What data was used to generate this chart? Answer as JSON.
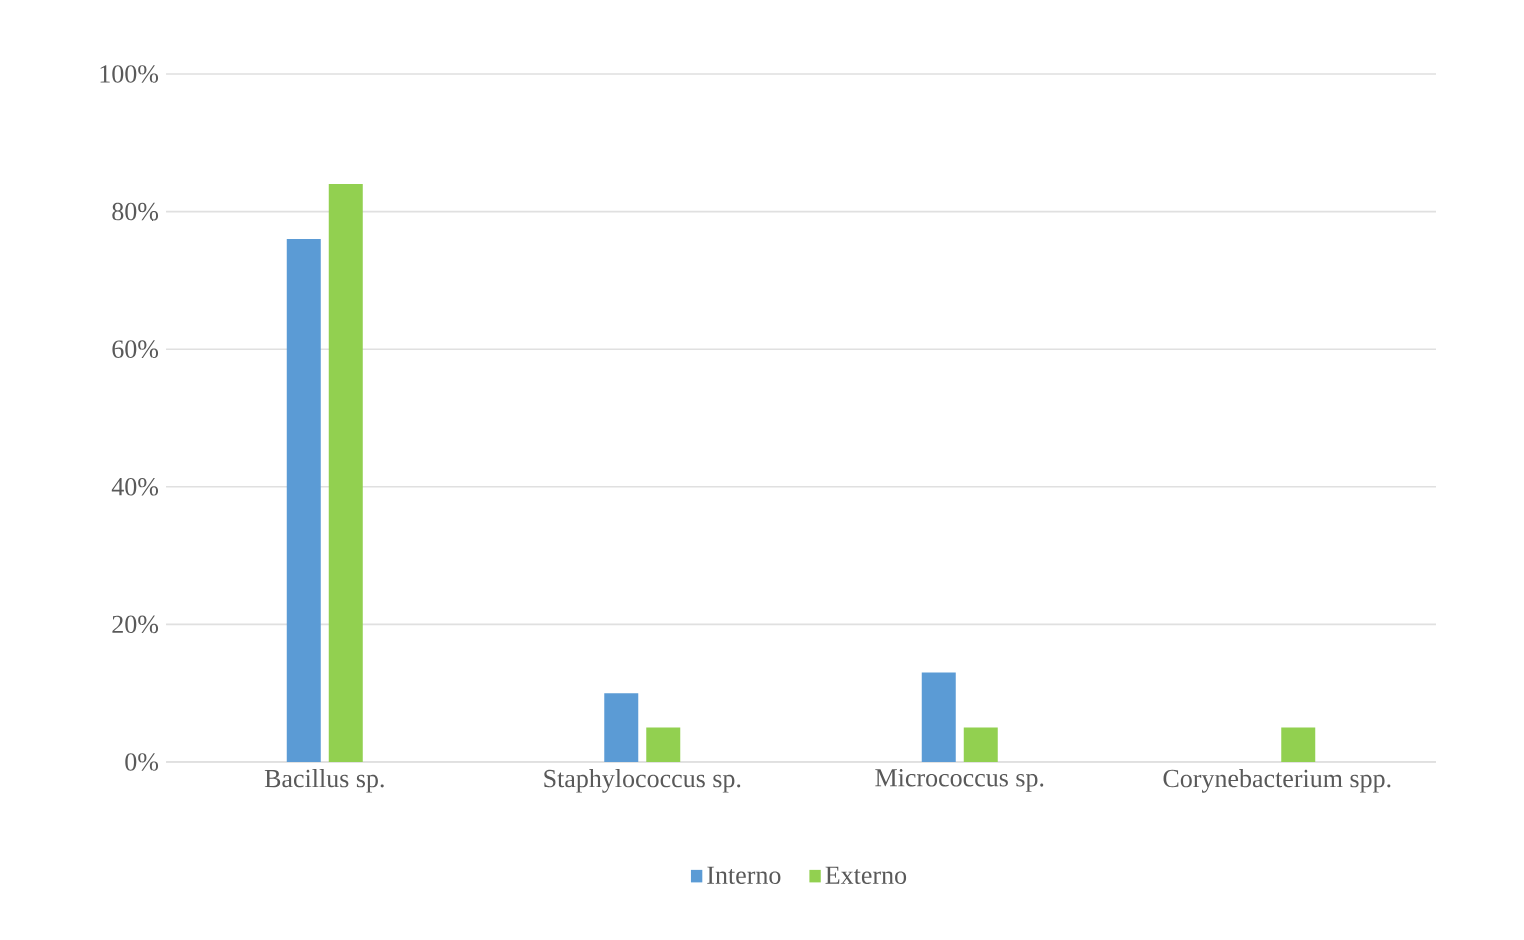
{
  "chart_data": {
    "type": "bar",
    "categories": [
      "Bacillus sp.",
      "Staphylococcus sp.",
      "Micrococcus sp.",
      "Corynebacterium spp."
    ],
    "series": [
      {
        "name": "Interno",
        "color": "#5b9bd5",
        "values": [
          76,
          10,
          13,
          0
        ]
      },
      {
        "name": "Externo",
        "color": "#92d050",
        "values": [
          84,
          5,
          5,
          5
        ]
      }
    ],
    "ylim": [
      0,
      100
    ],
    "yticks": [
      {
        "value": 0,
        "label": "0%"
      },
      {
        "value": 20,
        "label": "20%"
      },
      {
        "value": 40,
        "label": "40%"
      },
      {
        "value": 60,
        "label": "60%"
      },
      {
        "value": 80,
        "label": "80%"
      },
      {
        "value": 100,
        "label": "100%"
      }
    ],
    "grid": "y",
    "legend": "bottom"
  }
}
